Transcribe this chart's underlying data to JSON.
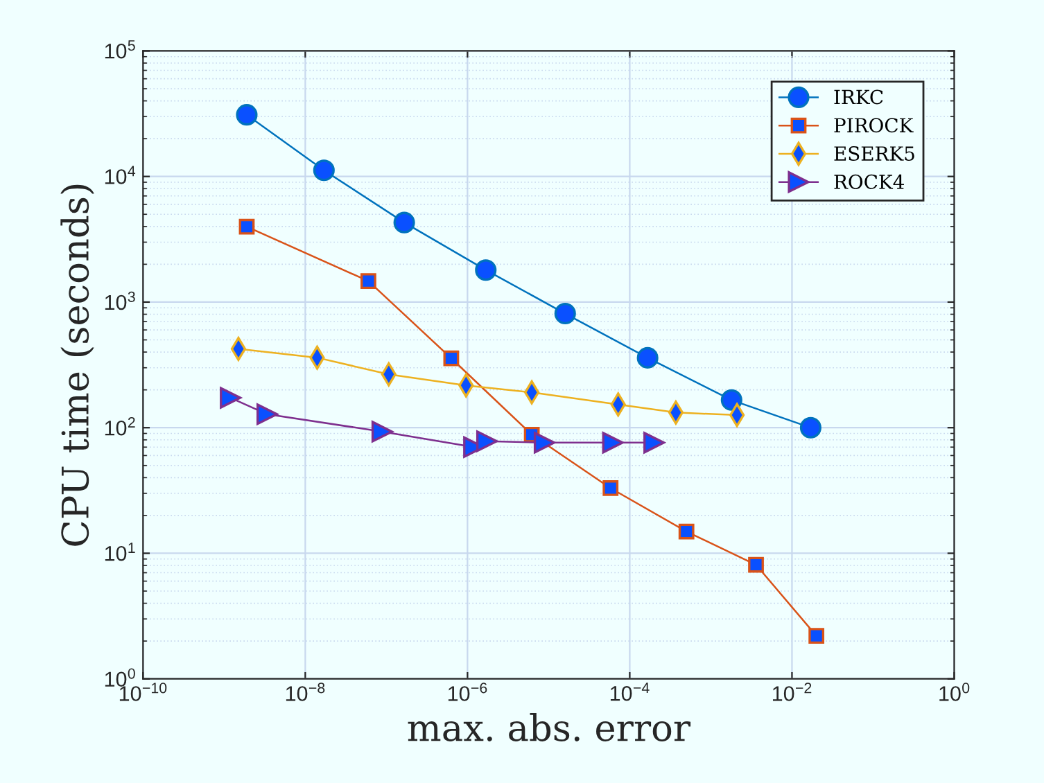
{
  "chart_data": {
    "type": "line",
    "xlabel": "max. abs. error",
    "ylabel": "CPU time (seconds)",
    "log": "xy",
    "grid": true,
    "legend": "top right",
    "xlim": [
      1e-10,
      1
    ],
    "ylim": [
      1,
      100000
    ],
    "xticks": [
      {
        "value": 1e-10,
        "label": "10$^{−10}$"
      },
      {
        "value": 1e-08,
        "label": "10$^{−8}$"
      },
      {
        "value": 1e-06,
        "label": "10$^{−6}$"
      },
      {
        "value": 0.0001,
        "label": "10$^{−4}$"
      },
      {
        "value": 0.01,
        "label": "10$^{−2}$"
      },
      {
        "value": 1,
        "label": "10$^{0}$"
      }
    ],
    "yticks": [
      {
        "value": 1,
        "label": "10$^{0}$"
      },
      {
        "value": 10,
        "label": "10$^{1}$"
      },
      {
        "value": 100,
        "label": "10$^{2}$"
      },
      {
        "value": 1000,
        "label": "10$^{3}$"
      },
      {
        "value": 10000,
        "label": "10$^{4}$"
      },
      {
        "value": 100000,
        "label": "10$^{5}$"
      }
    ],
    "series": [
      {
        "name": "IRKC",
        "color": "#0072bd",
        "marker": "circle",
        "x": [
          1.9e-09,
          1.7e-08,
          1.66e-07,
          1.68e-06,
          1.6e-05,
          0.000166,
          0.0018,
          0.017
        ],
        "values": [
          31000,
          11200,
          4300,
          1800,
          810,
          360,
          166,
          100
        ]
      },
      {
        "name": "PIROCK",
        "color": "#d95319",
        "marker": "square",
        "x": [
          1.9e-09,
          6e-08,
          6.3e-07,
          6.2e-06,
          5.8e-05,
          0.0005,
          0.0036,
          0.02
        ],
        "values": [
          3980,
          1470,
          357,
          88,
          33,
          14.9,
          8.1,
          2.2
        ]
      },
      {
        "name": "ESERK5",
        "color": "#edb120",
        "marker": "diamond",
        "x": [
          1.5e-09,
          1.4e-08,
          1.07e-07,
          9.6e-07,
          6.2e-06,
          7.2e-05,
          0.00037,
          0.0021
        ],
        "values": [
          424,
          361,
          266,
          217,
          191,
          153,
          132,
          126
        ]
      },
      {
        "name": "ROCK4",
        "color": "#7e2f8e",
        "marker": "triangle",
        "x": [
          1.2e-09,
          3.4e-09,
          8.9e-08,
          1.2e-06,
          1.74e-06,
          8.9e-06,
          6.2e-05,
          0.0002
        ],
        "values": [
          173,
          128,
          93,
          70,
          78,
          76,
          76,
          76
        ]
      }
    ]
  }
}
